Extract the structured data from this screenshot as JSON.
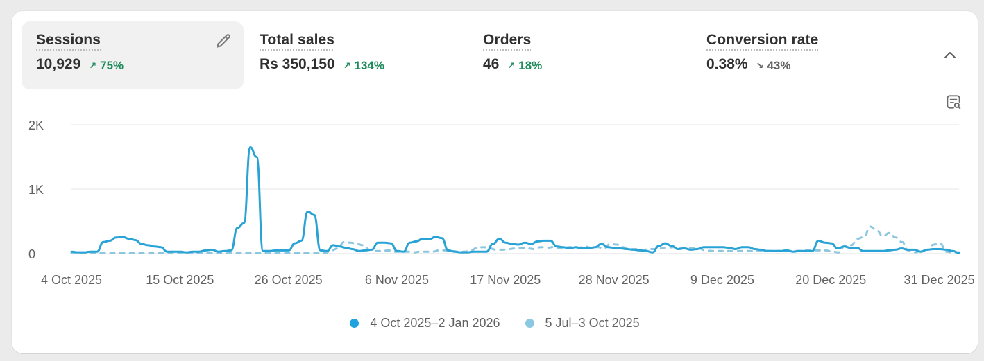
{
  "metrics": [
    {
      "label": "Sessions",
      "value": "10,929",
      "change": "75%",
      "direction": "up",
      "arrow": "↗",
      "active": true
    },
    {
      "label": "Total sales",
      "value": "Rs 350,150",
      "change": "134%",
      "direction": "up",
      "arrow": "↗",
      "active": false
    },
    {
      "label": "Orders",
      "value": "46",
      "change": "18%",
      "direction": "up",
      "arrow": "↗",
      "active": false
    },
    {
      "label": "Conversion rate",
      "value": "0.38%",
      "change": "43%",
      "direction": "down",
      "arrow": "↘",
      "active": false
    }
  ],
  "icons": {
    "edit": "pencil-icon",
    "collapse": "chevron-up-icon",
    "insights": "chart-search-icon"
  },
  "colors": {
    "current_series": "#29a3d6",
    "previous_series": "#8cc6df",
    "positive": "#1f8a5b",
    "negative": "#616161",
    "gridline": "#e6e6e6"
  },
  "legend": {
    "current": "4 Oct 2025–2 Jan 2026",
    "previous": "5 Jul–3 Oct 2025"
  },
  "chart_data": {
    "type": "line",
    "title": "Sessions",
    "xlabel": "",
    "ylabel": "",
    "ylim": [
      0,
      2000
    ],
    "y_ticks": [
      "0",
      "1K",
      "2K"
    ],
    "x_tick_labels": [
      "4 Oct 2025",
      "15 Oct 2025",
      "26 Oct 2025",
      "6 Nov 2025",
      "17 Nov 2025",
      "28 Nov 2025",
      "9 Dec 2025",
      "20 Dec 2025",
      "31 Dec 2025"
    ],
    "grid": true,
    "legend_position": "bottom",
    "x_days": 91,
    "series": [
      {
        "name": "4 Oct 2025–2 Jan 2026",
        "style": "solid",
        "values": [
          30,
          20,
          20,
          30,
          30,
          180,
          200,
          250,
          260,
          230,
          210,
          150,
          130,
          110,
          100,
          30,
          30,
          30,
          20,
          30,
          30,
          50,
          60,
          30,
          40,
          50,
          400,
          470,
          1650,
          1500,
          40,
          40,
          50,
          50,
          50,
          160,
          200,
          650,
          600,
          50,
          40,
          130,
          110,
          90,
          70,
          40,
          50,
          60,
          170,
          170,
          160,
          40,
          30,
          170,
          190,
          230,
          220,
          260,
          240,
          50,
          30,
          20,
          20,
          30,
          30,
          30,
          150,
          230,
          170,
          150,
          140,
          170,
          150,
          190,
          200,
          200,
          110,
          100,
          80,
          100,
          80,
          80,
          100,
          150,
          100,
          90,
          80,
          70,
          60,
          50,
          40,
          20,
          120,
          160,
          120,
          70,
          80,
          60,
          70,
          100,
          100,
          100,
          100,
          90,
          70,
          100,
          100,
          70,
          60,
          40,
          40,
          40,
          50,
          30,
          40,
          40,
          40,
          200,
          170,
          160,
          80,
          110,
          90,
          90,
          40,
          40,
          40,
          40,
          50,
          60,
          80,
          60,
          60,
          30,
          60,
          70,
          70,
          60,
          40,
          10
        ]
      },
      {
        "name": "5 Jul–3 Oct 2025",
        "style": "dashed",
        "values": [
          5,
          5,
          5,
          5,
          5,
          10,
          10,
          10,
          10,
          5,
          5,
          5,
          10,
          10,
          10,
          10,
          10,
          10,
          10,
          10,
          10,
          10,
          10,
          5,
          5,
          5,
          5,
          10,
          10,
          10,
          10,
          10,
          10,
          10,
          10,
          10,
          10,
          10,
          10,
          10,
          10,
          50,
          80,
          180,
          170,
          150,
          130,
          60,
          40,
          40,
          50,
          30,
          30,
          30,
          20,
          30,
          30,
          30,
          50,
          50,
          40,
          30,
          30,
          50,
          90,
          100,
          80,
          60,
          60,
          70,
          80,
          90,
          80,
          70,
          100,
          90,
          100,
          90,
          100,
          100,
          90,
          110,
          90,
          100,
          80,
          150,
          140,
          100,
          70,
          70,
          50,
          70,
          70,
          80,
          90,
          100,
          80,
          80,
          80,
          80,
          50,
          40,
          40,
          40,
          40,
          40,
          40,
          40,
          40,
          40,
          40,
          40,
          40,
          40,
          40,
          40,
          50,
          50,
          50,
          50,
          30,
          20,
          120,
          130,
          230,
          260,
          420,
          360,
          270,
          320,
          250,
          180,
          50,
          20,
          40,
          60,
          140,
          160,
          30,
          20,
          20
        ]
      }
    ]
  }
}
